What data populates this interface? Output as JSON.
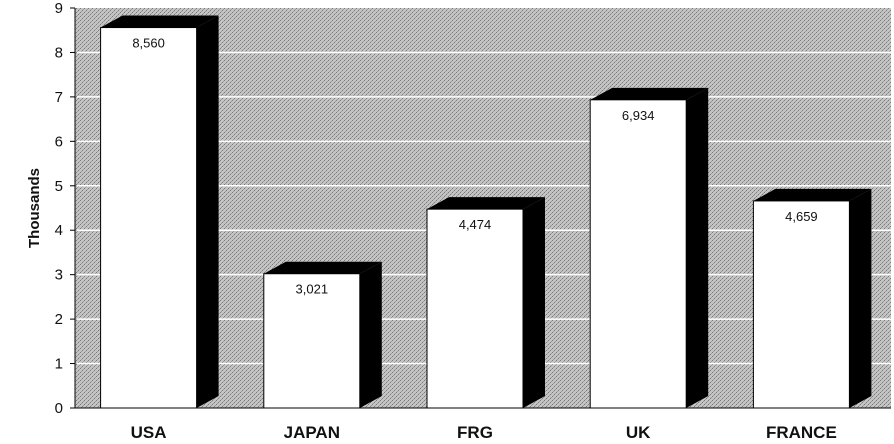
{
  "chart_data": {
    "type": "bar",
    "title": "",
    "xlabel": "",
    "ylabel": "Thousands",
    "categories": [
      "USA",
      "JAPAN",
      "FRG",
      "UK",
      "FRANCE"
    ],
    "values": [
      8.56,
      3.021,
      4.474,
      6.934,
      4.659
    ],
    "value_labels": [
      "8,560",
      "3,021",
      "4,474",
      "6,934",
      "4,659"
    ],
    "ylim": [
      0,
      9
    ],
    "yticks": [
      "0",
      "1",
      "2",
      "3",
      "4",
      "5",
      "6",
      "7",
      "8",
      "9"
    ],
    "grid": true,
    "style": "3d",
    "colors": {
      "plot_background": "#b8b8b8",
      "bar_face": "#ffffff",
      "bar_side": "#000000",
      "gridline": "#ffffff"
    }
  }
}
